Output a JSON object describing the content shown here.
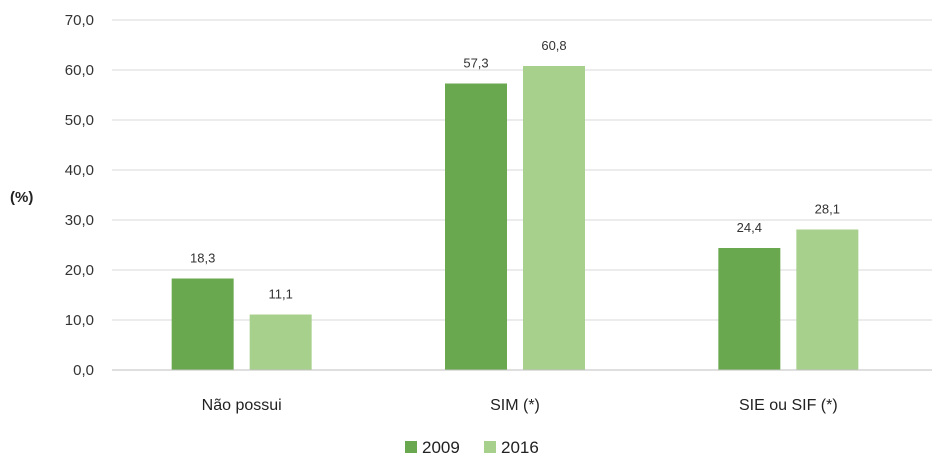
{
  "chart_data": {
    "type": "bar",
    "categories": [
      "Não possui",
      "SIM (*)",
      "SIE ou SIF (*)"
    ],
    "series": [
      {
        "name": "2009",
        "values": [
          18.3,
          57.3,
          24.4
        ],
        "labels": [
          "18,3",
          "57,3",
          "24,4"
        ],
        "color": "#6aa84f"
      },
      {
        "name": "2016",
        "values": [
          11.1,
          60.8,
          28.1
        ],
        "labels": [
          "11,1",
          "60,8",
          "28,1"
        ],
        "color": "#a8d08d"
      }
    ],
    "ylabel": "(%)",
    "ylim": [
      0,
      70
    ],
    "yticks": [
      0,
      10,
      20,
      30,
      40,
      50,
      60,
      70
    ],
    "ytick_labels": [
      "0,0",
      "10,0",
      "20,0",
      "30,0",
      "40,0",
      "50,0",
      "60,0",
      "70,0"
    ],
    "grid": true,
    "legend_position": "bottom"
  }
}
